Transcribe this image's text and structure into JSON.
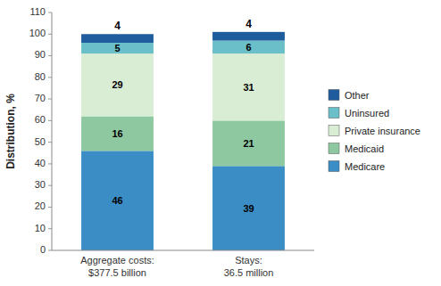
{
  "chart_data": {
    "type": "bar",
    "stacked": true,
    "data_labels": true,
    "grid": false,
    "legend": "right",
    "categories": [
      "Aggregate costs:\n$377.5 billion",
      "Stays:\n36.5 million"
    ],
    "series": [
      {
        "name": "Medicare",
        "color": "#3A8DC5",
        "values": [
          46,
          39
        ]
      },
      {
        "name": "Medicaid",
        "color": "#8DC8A0",
        "values": [
          16,
          21
        ]
      },
      {
        "name": "Private insurance",
        "color": "#D9EDD5",
        "values": [
          29,
          31
        ]
      },
      {
        "name": "Uninsured",
        "color": "#6BBFC8",
        "values": [
          5,
          6
        ]
      },
      {
        "name": "Other",
        "color": "#1F5C9E",
        "values": [
          4,
          4
        ]
      }
    ],
    "ylabel": "Distribution, %",
    "ylim": [
      0,
      110
    ],
    "yticks": [
      0,
      10,
      20,
      30,
      40,
      50,
      60,
      70,
      80,
      90,
      100,
      110
    ]
  }
}
